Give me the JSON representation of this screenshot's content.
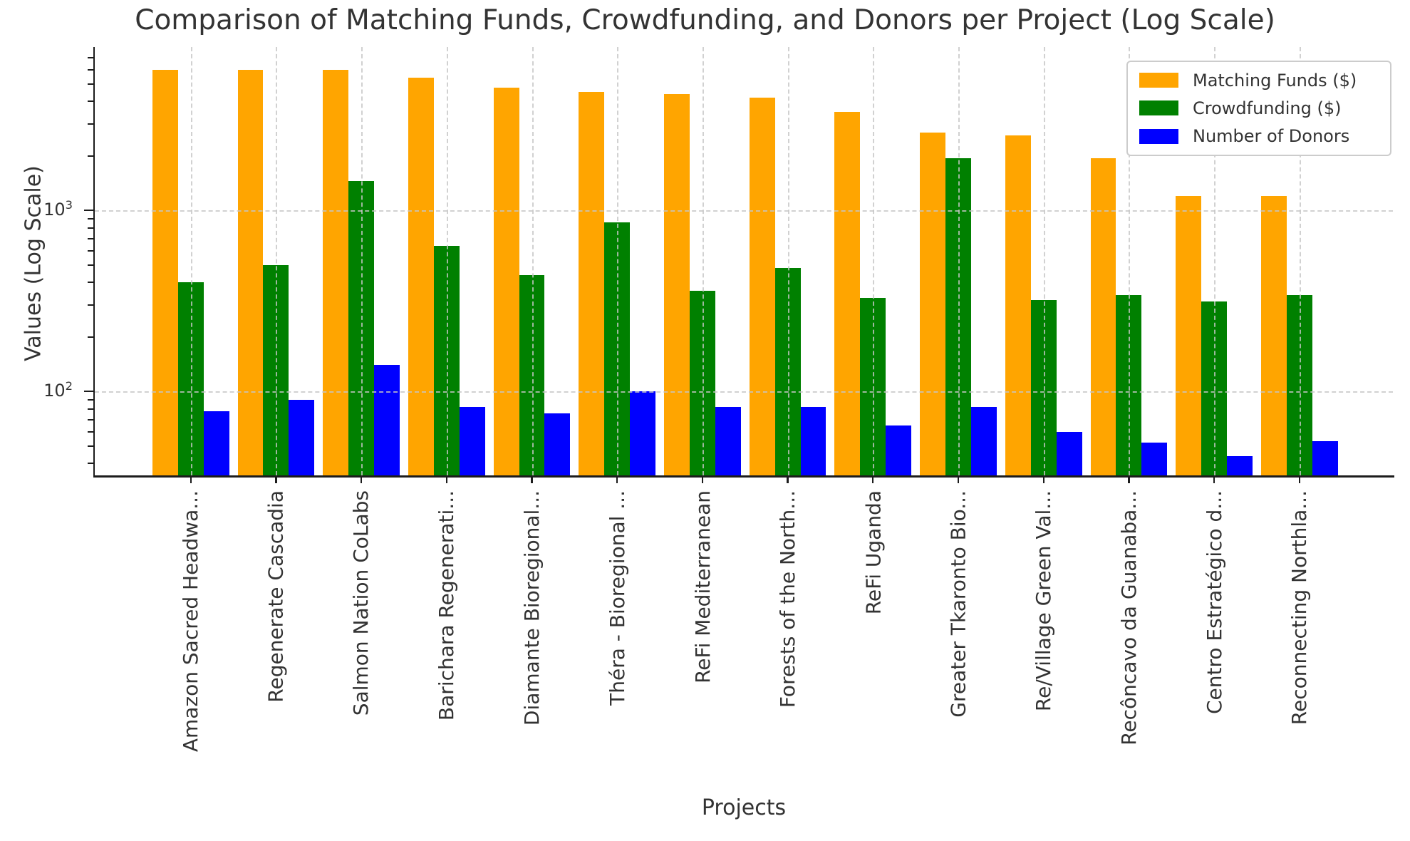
{
  "chart_data": {
    "type": "bar",
    "title": "Comparison of Matching Funds, Crowdfunding, and Donors per Project (Log Scale)",
    "xlabel": "Projects",
    "ylabel": "Values (Log Scale)",
    "yscale": "log",
    "ylim": [
      34.5,
      8000
    ],
    "grid": true,
    "legend_position": "upper right",
    "categories": [
      "Amazon Sacred Headwa...",
      "Regenerate Cascadia",
      "Salmon Nation CoLabs",
      "Barichara Regenerati...",
      "Diamante Bioregional...",
      "Théra - Bioregional ...",
      "ReFi Mediterranean",
      "Forests of the North...",
      "ReFi Uganda",
      "Greater Tkaronto Bio...",
      "Re/Village Green Val...",
      "Recôncavo da Guanaba...",
      "Centro Estratégico d...",
      "Reconnecting Northla..."
    ],
    "series": [
      {
        "name": "Matching Funds ($)",
        "color": "#FFA500",
        "values": [
          6000,
          6000,
          6000,
          5400,
          4750,
          4500,
          4400,
          4200,
          3500,
          2700,
          2600,
          1950,
          1200,
          1200
        ]
      },
      {
        "name": "Crowdfunding ($)",
        "color": "#008000",
        "values": [
          400,
          500,
          1450,
          640,
          440,
          860,
          360,
          480,
          330,
          1950,
          320,
          340,
          315,
          340
        ]
      },
      {
        "name": "Number of Donors",
        "color": "#0000FF",
        "values": [
          78,
          90,
          140,
          82,
          76,
          100,
          82,
          82,
          65,
          82,
          60,
          52,
          44,
          53
        ]
      }
    ],
    "yticks_major": [
      {
        "value": 1000,
        "base": "10",
        "exp": "3"
      },
      {
        "value": 100,
        "base": "10",
        "exp": "2"
      }
    ],
    "yticks_minor": [
      40,
      50,
      60,
      70,
      80,
      90,
      200,
      300,
      400,
      500,
      600,
      700,
      800,
      900,
      2000,
      3000,
      4000,
      5000,
      6000,
      7000
    ]
  }
}
